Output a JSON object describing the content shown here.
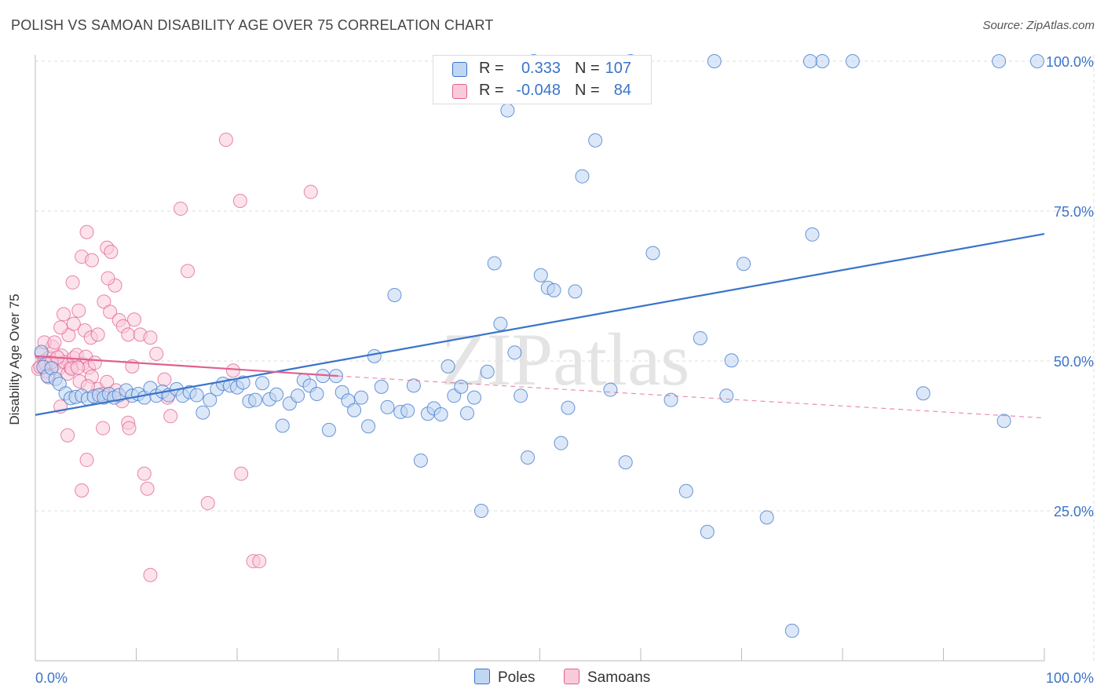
{
  "title": "POLISH VS SAMOAN DISABILITY AGE OVER 75 CORRELATION CHART",
  "source": "Source: ZipAtlas.com",
  "watermark": "ZIPatlas",
  "colors": {
    "poles": "#3a74c9",
    "poles_fill": "#c0d6f3",
    "samoans": "#e0608f",
    "samoans_fill": "#f9cbda",
    "axis_label_blue": "#3a74c9",
    "grid": "#dddddd"
  },
  "legend": {
    "rows": [
      {
        "r_label": "R =",
        "r_value": "0.333",
        "n_label": "N =",
        "n_value": "107"
      },
      {
        "r_label": "R =",
        "r_value": "-0.048",
        "n_label": "N =",
        "n_value": "84"
      }
    ]
  },
  "bottom_legend": [
    {
      "label": "Poles"
    },
    {
      "label": "Samoans"
    }
  ],
  "chart_data": {
    "type": "scatter",
    "title": "POLISH VS SAMOAN DISABILITY AGE OVER 75 CORRELATION CHART",
    "xlabel": "",
    "ylabel": "Disability Age Over 75",
    "xlim": [
      0,
      100
    ],
    "ylim": [
      0,
      102
    ],
    "x_tick_labels": [
      "0.0%",
      "100.0%"
    ],
    "y_tick_labels": [
      {
        "value": 100,
        "label": "100.0%"
      },
      {
        "value": 75,
        "label": "75.0%"
      },
      {
        "value": 50,
        "label": "50.0%"
      },
      {
        "value": 25,
        "label": "25.0%"
      }
    ],
    "grid": true,
    "series": [
      {
        "name": "Poles",
        "r": 0.333,
        "n": 107,
        "trend": {
          "x": [
            0,
            100
          ],
          "y": [
            41.0,
            71.2
          ]
        },
        "points": [
          [
            0.6,
            51.5
          ],
          [
            0.8,
            49
          ],
          [
            1.2,
            47.5
          ],
          [
            1.6,
            48.8
          ],
          [
            2,
            47
          ],
          [
            2.4,
            46.2
          ],
          [
            3,
            44.6
          ],
          [
            3.5,
            43.8
          ],
          [
            4,
            44
          ],
          [
            4.6,
            44.2
          ],
          [
            5.2,
            43.7
          ],
          [
            5.8,
            44.1
          ],
          [
            6.3,
            44.3
          ],
          [
            6.8,
            43.9
          ],
          [
            7.3,
            44.5
          ],
          [
            7.8,
            43.9
          ],
          [
            8.3,
            44.3
          ],
          [
            9,
            45.1
          ],
          [
            9.6,
            44.2
          ],
          [
            10.2,
            44.5
          ],
          [
            10.8,
            43.9
          ],
          [
            11.4,
            45.5
          ],
          [
            12,
            44.2
          ],
          [
            12.6,
            44.9
          ],
          [
            13.2,
            44.3
          ],
          [
            14,
            45.3
          ],
          [
            14.6,
            44.2
          ],
          [
            15.3,
            44.8
          ],
          [
            16,
            44.3
          ],
          [
            16.6,
            41.4
          ],
          [
            17.3,
            43.5
          ],
          [
            18,
            45.3
          ],
          [
            18.6,
            46.2
          ],
          [
            19.3,
            45.9
          ],
          [
            20,
            45.6
          ],
          [
            20.6,
            46.4
          ],
          [
            21.2,
            43.3
          ],
          [
            21.8,
            43.5
          ],
          [
            22.5,
            46.3
          ],
          [
            23.2,
            43.6
          ],
          [
            23.9,
            44.4
          ],
          [
            24.5,
            39.2
          ],
          [
            25.2,
            42.9
          ],
          [
            26,
            44.2
          ],
          [
            26.6,
            46.8
          ],
          [
            27.2,
            45.9
          ],
          [
            27.9,
            44.5
          ],
          [
            28.5,
            47.5
          ],
          [
            29.1,
            38.5
          ],
          [
            29.8,
            47.5
          ],
          [
            30.4,
            44.8
          ],
          [
            31,
            43.4
          ],
          [
            31.6,
            41.8
          ],
          [
            32.3,
            43.9
          ],
          [
            33,
            39.1
          ],
          [
            33.6,
            50.8
          ],
          [
            34.3,
            45.7
          ],
          [
            34.9,
            42.3
          ],
          [
            35.6,
            61
          ],
          [
            36.2,
            41.5
          ],
          [
            36.9,
            41.7
          ],
          [
            37.5,
            45.9
          ],
          [
            38.2,
            33.4
          ],
          [
            38.9,
            41.2
          ],
          [
            39.5,
            42.1
          ],
          [
            40.2,
            41.1
          ],
          [
            40.9,
            49.1
          ],
          [
            41.5,
            44.2
          ],
          [
            42.2,
            45.7
          ],
          [
            42.8,
            41.3
          ],
          [
            43.5,
            43.9
          ],
          [
            44.2,
            25
          ],
          [
            44.8,
            48.2
          ],
          [
            45.5,
            66.3
          ],
          [
            46.1,
            56.2
          ],
          [
            46.8,
            91.8
          ],
          [
            47.5,
            51.4
          ],
          [
            48.1,
            44.2
          ],
          [
            48.8,
            33.9
          ],
          [
            49.4,
            100
          ],
          [
            50.1,
            64.3
          ],
          [
            50.8,
            62.2
          ],
          [
            51.4,
            61.8
          ],
          [
            52.1,
            36.3
          ],
          [
            52.8,
            42.2
          ],
          [
            53.5,
            61.6
          ],
          [
            54.2,
            80.8
          ],
          [
            55.5,
            86.8
          ],
          [
            57,
            45.2
          ],
          [
            58.5,
            33.1
          ],
          [
            59,
            100
          ],
          [
            61.2,
            68
          ],
          [
            63,
            43.5
          ],
          [
            64.5,
            28.3
          ],
          [
            65.9,
            53.8
          ],
          [
            66.6,
            21.5
          ],
          [
            67.3,
            100
          ],
          [
            68.5,
            44.2
          ],
          [
            69,
            50.1
          ],
          [
            70.2,
            66.2
          ],
          [
            72.5,
            23.9
          ],
          [
            75,
            5
          ],
          [
            77,
            71.1
          ],
          [
            78,
            100
          ],
          [
            95.5,
            100
          ],
          [
            99.3,
            100
          ],
          [
            76.8,
            100
          ],
          [
            81,
            100
          ],
          [
            88,
            44.6
          ],
          [
            96,
            40
          ]
        ]
      },
      {
        "name": "Samoans",
        "r": -0.048,
        "n": 84,
        "trend": {
          "x": [
            0,
            30
          ],
          "y": [
            50.8,
            47.5
          ]
        },
        "trend_dashed": {
          "x": [
            30,
            100
          ],
          "y": [
            47.5,
            40.5
          ]
        },
        "points": [
          [
            0.3,
            48.7
          ],
          [
            0.6,
            51.2
          ],
          [
            0.9,
            50
          ],
          [
            1.1,
            48.3
          ],
          [
            1.4,
            50.6
          ],
          [
            1.7,
            52.4
          ],
          [
            2,
            49.5
          ],
          [
            2.3,
            48.7
          ],
          [
            2.6,
            50.9
          ],
          [
            2.9,
            49.8
          ],
          [
            3.2,
            47.9
          ],
          [
            3.5,
            48.9
          ],
          [
            3.8,
            50.5
          ],
          [
            4.1,
            51
          ],
          [
            4.4,
            46.6
          ],
          [
            4.7,
            49.5
          ],
          [
            5,
            50.7
          ],
          [
            5.3,
            48.9
          ],
          [
            5.6,
            47.4
          ],
          [
            5.9,
            49.7
          ],
          [
            2.8,
            57.8
          ],
          [
            3.3,
            54.3
          ],
          [
            3.8,
            56.2
          ],
          [
            4.3,
            58.4
          ],
          [
            4.9,
            55.1
          ],
          [
            5.5,
            53.9
          ],
          [
            6.2,
            54.4
          ],
          [
            6.8,
            59.9
          ],
          [
            7.4,
            58.2
          ],
          [
            7.9,
            62.6
          ],
          [
            8.3,
            56.8
          ],
          [
            8.7,
            55.8
          ],
          [
            9.2,
            54.4
          ],
          [
            3.7,
            63.1
          ],
          [
            4.6,
            67.4
          ],
          [
            5.1,
            71.5
          ],
          [
            5.6,
            66.8
          ],
          [
            7.1,
            68.9
          ],
          [
            7.5,
            68.2
          ],
          [
            7.2,
            63.8
          ],
          [
            9.8,
            56.9
          ],
          [
            10.4,
            54.4
          ],
          [
            11.4,
            53.9
          ],
          [
            12,
            51.2
          ],
          [
            12.8,
            46.9
          ],
          [
            9.6,
            49.1
          ],
          [
            8.6,
            43.3
          ],
          [
            9.2,
            39.7
          ],
          [
            9.3,
            38.8
          ],
          [
            6.7,
            38.8
          ],
          [
            3.2,
            37.6
          ],
          [
            5.1,
            33.5
          ],
          [
            4.6,
            28.4
          ],
          [
            10.8,
            31.2
          ],
          [
            11.1,
            28.7
          ],
          [
            11.4,
            14.3
          ],
          [
            13.1,
            43.9
          ],
          [
            13.4,
            40.8
          ],
          [
            14.4,
            75.4
          ],
          [
            15.1,
            65
          ],
          [
            17.1,
            26.3
          ],
          [
            18.9,
            86.9
          ],
          [
            19.6,
            48.4
          ],
          [
            20.3,
            76.7
          ],
          [
            20.4,
            31.2
          ],
          [
            21.6,
            16.6
          ],
          [
            22.2,
            16.6
          ],
          [
            27.3,
            78.2
          ],
          [
            6.2,
            45.3
          ],
          [
            5.2,
            45.8
          ],
          [
            6.7,
            44.5
          ],
          [
            7.1,
            46.5
          ],
          [
            1.3,
            47.3
          ],
          [
            0.9,
            53.1
          ],
          [
            1.9,
            53.1
          ],
          [
            2.5,
            55.6
          ],
          [
            3.6,
            48.7
          ],
          [
            4.2,
            48.9
          ],
          [
            0.5,
            49
          ],
          [
            1,
            49.5
          ],
          [
            1.6,
            49.8
          ],
          [
            2.2,
            50.6
          ],
          [
            2.5,
            42.4
          ],
          [
            8,
            45.1
          ]
        ]
      }
    ]
  }
}
